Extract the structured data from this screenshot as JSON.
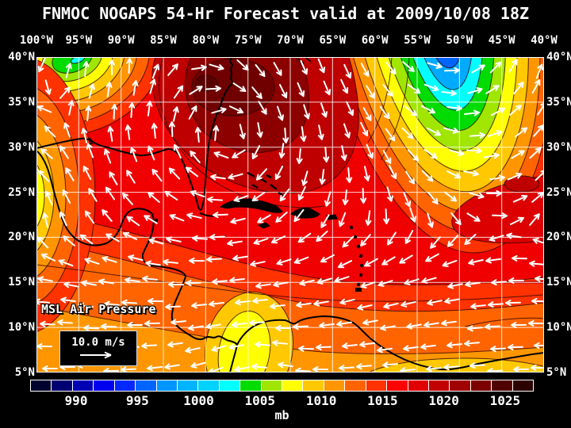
{
  "title": "FNMOC NOGAPS 54-Hr Forecast valid at 2009/10/08 18Z",
  "map": {
    "overlay_label": "MSL Air Pressure",
    "wind_scale_label": "10.0 m/s",
    "lon_labels": [
      "100°W",
      "95°W",
      "90°W",
      "85°W",
      "80°W",
      "75°W",
      "70°W",
      "65°W",
      "60°W",
      "55°W",
      "50°W",
      "45°W",
      "40°W"
    ],
    "lat_labels": [
      "40°N",
      "35°N",
      "30°N",
      "25°N",
      "20°N",
      "15°N",
      "10°N",
      "5°N"
    ]
  },
  "colorbar": {
    "unit": "mb",
    "tick_labels": [
      "990",
      "995",
      "1000",
      "1005",
      "1010",
      "1015",
      "1020",
      "1025"
    ],
    "colors": [
      "#02022E",
      "#000072",
      "#0000B4",
      "#0000F0",
      "#0028FF",
      "#0064FF",
      "#0096FF",
      "#00B4FF",
      "#00D2FF",
      "#00FFFF",
      "#00DC00",
      "#A0E600",
      "#FFFF00",
      "#FFC800",
      "#FF9600",
      "#FF6400",
      "#FF3200",
      "#FF0000",
      "#E10000",
      "#C30000",
      "#A00000",
      "#7D0000",
      "#500000",
      "#2D0000"
    ]
  },
  "chart_data": {
    "type": "heatmap",
    "title": "FNMOC NOGAPS 54-Hr Forecast valid at 2009/10/08 18Z",
    "model": "FNMOC NOGAPS",
    "forecast_hour": 54,
    "valid_time": "2009/10/08 18Z",
    "variable": "MSL Air Pressure",
    "unit": "mb",
    "x_axis": {
      "label": "longitude",
      "ticks": [
        "100°W",
        "95°W",
        "90°W",
        "85°W",
        "80°W",
        "75°W",
        "70°W",
        "65°W",
        "60°W",
        "55°W",
        "50°W",
        "45°W",
        "40°W"
      ]
    },
    "y_axis": {
      "label": "latitude",
      "ticks": [
        "40°N",
        "35°N",
        "30°N",
        "25°N",
        "20°N",
        "15°N",
        "10°N",
        "5°N"
      ]
    },
    "colorbar_ticks_mb": [
      990,
      995,
      1000,
      1005,
      1010,
      1015,
      1020,
      1025
    ],
    "wind_reference_mps": 10.0,
    "overlay": "wind vectors (white arrows)",
    "pressure_features": [
      {
        "feature": "high",
        "approx_location": "SE United States coast, ~80°W 35°N",
        "approx_value_mb": 1024
      },
      {
        "feature": "low",
        "approx_location": "North Atlantic, ~55°W north of 40°N",
        "approx_value_mb": 996
      },
      {
        "feature": "low",
        "approx_location": "~97°W 38°N",
        "approx_value_mb": 1004
      },
      {
        "feature": "low",
        "approx_location": "Colombia, ~75°W 8°N",
        "approx_value_mb": 1006
      },
      {
        "feature": "low",
        "approx_location": "E Pacific at ~100°W 25°N (map edge)",
        "approx_value_mb": 1006
      },
      {
        "feature": "flow",
        "approx_location": "Caribbean / tropical Atlantic south of 20°N",
        "description": "easterly trade winds"
      }
    ]
  }
}
